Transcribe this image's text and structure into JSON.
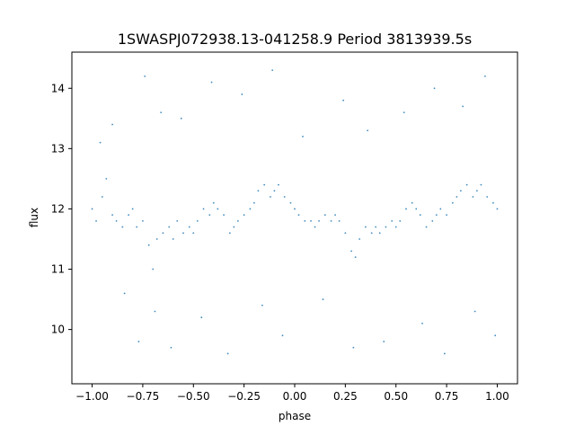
{
  "chart_data": {
    "type": "scatter",
    "title": "1SWASPJ072938.13-041258.9 Period 3813939.5s",
    "xlabel": "phase",
    "ylabel": "flux",
    "xlim": [
      -1.1,
      1.1
    ],
    "ylim": [
      9.1,
      14.6
    ],
    "xticks": [
      -1.0,
      -0.75,
      -0.5,
      -0.25,
      0.0,
      0.25,
      0.5,
      0.75,
      1.0
    ],
    "xtick_labels": [
      "−1.00",
      "−0.75",
      "−0.50",
      "−0.25",
      "0.00",
      "0.25",
      "0.50",
      "0.75",
      "1.00"
    ],
    "yticks": [
      10,
      11,
      12,
      13,
      14
    ],
    "ytick_labels": [
      "10",
      "11",
      "12",
      "13",
      "14"
    ],
    "grid": false,
    "legend": "none",
    "series": [
      {
        "color": "#1f77b4",
        "marker": "point",
        "points": [
          [
            -1.0,
            12.0
          ],
          [
            -0.98,
            11.8
          ],
          [
            -0.95,
            12.2
          ],
          [
            -0.93,
            12.5
          ],
          [
            -0.9,
            11.9
          ],
          [
            -0.88,
            11.8
          ],
          [
            -0.85,
            11.7
          ],
          [
            -0.82,
            11.9
          ],
          [
            -0.8,
            12.0
          ],
          [
            -0.78,
            11.7
          ],
          [
            -0.75,
            11.8
          ],
          [
            -0.72,
            11.4
          ],
          [
            -0.7,
            11.0
          ],
          [
            -0.68,
            11.5
          ],
          [
            -0.65,
            11.6
          ],
          [
            -0.62,
            11.7
          ],
          [
            -0.6,
            11.5
          ],
          [
            -0.58,
            11.8
          ],
          [
            -0.55,
            11.6
          ],
          [
            -0.52,
            11.7
          ],
          [
            -0.5,
            11.6
          ],
          [
            -0.48,
            11.8
          ],
          [
            -0.45,
            12.0
          ],
          [
            -0.42,
            11.9
          ],
          [
            -0.4,
            12.1
          ],
          [
            -0.38,
            12.0
          ],
          [
            -0.35,
            11.9
          ],
          [
            -0.32,
            11.6
          ],
          [
            -0.3,
            11.7
          ],
          [
            -0.28,
            11.8
          ],
          [
            -0.25,
            11.9
          ],
          [
            -0.22,
            12.0
          ],
          [
            -0.2,
            12.1
          ],
          [
            -0.18,
            12.3
          ],
          [
            -0.15,
            12.4
          ],
          [
            -0.12,
            12.2
          ],
          [
            -0.1,
            12.3
          ],
          [
            -0.08,
            12.4
          ],
          [
            -0.05,
            12.2
          ],
          [
            -0.02,
            12.1
          ],
          [
            0.0,
            12.0
          ],
          [
            0.02,
            11.9
          ],
          [
            0.05,
            11.8
          ],
          [
            0.08,
            11.8
          ],
          [
            0.1,
            11.7
          ],
          [
            0.12,
            11.8
          ],
          [
            0.15,
            11.9
          ],
          [
            0.18,
            11.8
          ],
          [
            0.2,
            11.9
          ],
          [
            0.22,
            11.8
          ],
          [
            0.25,
            11.6
          ],
          [
            0.28,
            11.3
          ],
          [
            0.3,
            11.2
          ],
          [
            0.32,
            11.5
          ],
          [
            0.35,
            11.7
          ],
          [
            0.38,
            11.6
          ],
          [
            0.4,
            11.7
          ],
          [
            0.42,
            11.6
          ],
          [
            0.45,
            11.7
          ],
          [
            0.48,
            11.8
          ],
          [
            0.5,
            11.7
          ],
          [
            0.52,
            11.8
          ],
          [
            0.55,
            12.0
          ],
          [
            0.58,
            12.1
          ],
          [
            0.6,
            12.0
          ],
          [
            0.62,
            11.9
          ],
          [
            0.65,
            11.7
          ],
          [
            0.68,
            11.8
          ],
          [
            0.7,
            11.9
          ],
          [
            0.72,
            12.0
          ],
          [
            0.75,
            11.9
          ],
          [
            0.78,
            12.1
          ],
          [
            0.8,
            12.2
          ],
          [
            0.82,
            12.3
          ],
          [
            0.85,
            12.4
          ],
          [
            0.88,
            12.2
          ],
          [
            0.9,
            12.3
          ],
          [
            0.92,
            12.4
          ],
          [
            0.95,
            12.2
          ],
          [
            0.98,
            12.1
          ],
          [
            1.0,
            12.0
          ],
          [
            -0.96,
            13.1
          ],
          [
            -0.9,
            13.4
          ],
          [
            -0.84,
            10.6
          ],
          [
            -0.77,
            9.8
          ],
          [
            -0.74,
            14.2
          ],
          [
            -0.69,
            10.3
          ],
          [
            -0.66,
            13.6
          ],
          [
            -0.61,
            9.7
          ],
          [
            -0.56,
            13.5
          ],
          [
            -0.46,
            10.2
          ],
          [
            -0.41,
            14.1
          ],
          [
            -0.33,
            9.6
          ],
          [
            -0.26,
            13.9
          ],
          [
            -0.16,
            10.4
          ],
          [
            -0.11,
            14.3
          ],
          [
            -0.06,
            9.9
          ],
          [
            0.04,
            13.2
          ],
          [
            0.14,
            10.5
          ],
          [
            0.24,
            13.8
          ],
          [
            0.29,
            9.7
          ],
          [
            0.36,
            13.3
          ],
          [
            0.44,
            9.8
          ],
          [
            0.54,
            13.6
          ],
          [
            0.63,
            10.1
          ],
          [
            0.69,
            14.0
          ],
          [
            0.74,
            9.6
          ],
          [
            0.83,
            13.7
          ],
          [
            0.89,
            10.3
          ],
          [
            0.94,
            14.2
          ],
          [
            0.99,
            9.9
          ]
        ]
      }
    ]
  }
}
